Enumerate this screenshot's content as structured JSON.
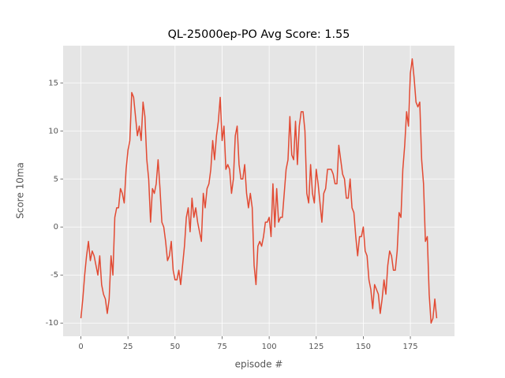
{
  "chart_data": {
    "type": "line",
    "title": "QL-25000ep-PO Avg Score: 1.55",
    "x_label": "episode #",
    "y_label": "Score 10ma",
    "x": [
      0,
      1,
      2,
      3,
      4,
      5,
      6,
      7,
      8,
      9,
      10,
      11,
      12,
      13,
      14,
      15,
      16,
      17,
      18,
      19,
      20,
      21,
      22,
      23,
      24,
      25,
      26,
      27,
      28,
      29,
      30,
      31,
      32,
      33,
      34,
      35,
      36,
      37,
      38,
      39,
      40,
      41,
      42,
      43,
      44,
      45,
      46,
      47,
      48,
      49,
      50,
      51,
      52,
      53,
      54,
      55,
      56,
      57,
      58,
      59,
      60,
      61,
      62,
      63,
      64,
      65,
      66,
      67,
      68,
      69,
      70,
      71,
      72,
      73,
      74,
      75,
      76,
      77,
      78,
      79,
      80,
      81,
      82,
      83,
      84,
      85,
      86,
      87,
      88,
      89,
      90,
      91,
      92,
      93,
      94,
      95,
      96,
      97,
      98,
      99,
      100,
      101,
      102,
      103,
      104,
      105,
      106,
      107,
      108,
      109,
      110,
      111,
      112,
      113,
      114,
      115,
      116,
      117,
      118,
      119,
      120,
      121,
      122,
      123,
      124,
      125,
      126,
      127,
      128,
      129,
      130,
      131,
      132,
      133,
      134,
      135,
      136,
      137,
      138,
      139,
      140,
      141,
      142,
      143,
      144,
      145,
      146,
      147,
      148,
      149,
      150,
      151,
      152,
      153,
      154,
      155,
      156,
      157,
      158,
      159,
      160,
      161,
      162,
      163,
      164,
      165,
      166,
      167,
      168,
      169,
      170,
      171,
      172,
      173,
      174,
      175,
      176,
      177,
      178,
      179,
      180,
      181,
      182,
      183,
      184,
      185,
      186,
      187,
      188,
      189
    ],
    "series": [
      {
        "color": "#e24a33",
        "values": [
          -9.5,
          -7.5,
          -5,
          -3,
          -1.5,
          -3.5,
          -2.5,
          -3,
          -4,
          -5,
          -3,
          -6,
          -7,
          -7.5,
          -9,
          -7.5,
          -3,
          -5,
          1,
          2,
          2,
          4,
          3.5,
          2.5,
          6,
          8,
          9,
          14,
          13.5,
          11.5,
          9.5,
          10.5,
          9,
          13,
          11.5,
          7,
          5,
          0.5,
          4,
          3.5,
          4.5,
          7,
          4,
          0.5,
          0,
          -1.5,
          -3.5,
          -3,
          -1.5,
          -4.5,
          -5.5,
          -5.5,
          -4.5,
          -6,
          -4,
          -2,
          1,
          2,
          -0.5,
          3,
          1,
          2,
          0.5,
          -0.5,
          -1.5,
          3.5,
          2,
          4,
          4.5,
          6,
          9,
          7,
          9.5,
          11,
          13.5,
          9,
          10.5,
          6,
          6.5,
          6,
          3.5,
          5,
          9.5,
          10.5,
          6.5,
          5,
          5,
          6.5,
          3.5,
          2,
          3.5,
          2,
          -4,
          -6,
          -2,
          -1.5,
          -2,
          -1,
          0.5,
          0.5,
          1,
          -1,
          4.5,
          0,
          4,
          0.5,
          1,
          1,
          3.5,
          6,
          7,
          11.5,
          7.5,
          7,
          11,
          6.5,
          10.5,
          12,
          12,
          10,
          3.5,
          2.5,
          6.5,
          3.5,
          2.5,
          6,
          4.5,
          2.5,
          0.5,
          3.5,
          4,
          6,
          6,
          6,
          5.5,
          4.5,
          4.5,
          8.5,
          7,
          5.5,
          5,
          3,
          3,
          5,
          2,
          1.5,
          -1,
          -3,
          -1,
          -1,
          0,
          -2.5,
          -3,
          -5.5,
          -6.5,
          -8.5,
          -6,
          -6.5,
          -7,
          -9,
          -7.5,
          -5.5,
          -7,
          -4,
          -2.5,
          -3,
          -4.5,
          -4.5,
          -2.5,
          1.5,
          1,
          6,
          8.5,
          12,
          10.5,
          16,
          17.5,
          15.5,
          13,
          12.5,
          13,
          7,
          4.5,
          -1.5,
          -1,
          -7,
          -10,
          -9.5,
          -7.5,
          -9.5
        ]
      }
    ],
    "xlim": [
      -9.45,
      198.45
    ],
    "xticks": [
      0,
      25,
      50,
      75,
      100,
      125,
      150,
      175
    ],
    "ylim": [
      -11.375,
      18.875
    ],
    "yticks": [
      -10,
      -5,
      0,
      5,
      10,
      15
    ],
    "grid": true
  }
}
